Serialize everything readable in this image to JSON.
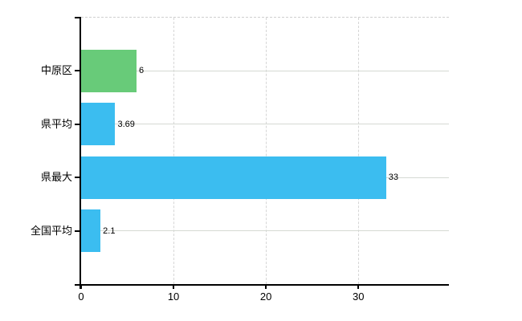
{
  "chart_data": {
    "type": "bar",
    "orientation": "horizontal",
    "title": "",
    "xlabel": "",
    "ylabel": "",
    "categories": [
      "中原区",
      "県平均",
      "県最大",
      "全国平均"
    ],
    "values": [
      6,
      3.69,
      33,
      2.1
    ],
    "value_labels": [
      "6",
      "3.69",
      "33",
      "2.1"
    ],
    "bar_colors": [
      "#68cb79",
      "#3bbdf0",
      "#3bbdf0",
      "#3bbdf0"
    ],
    "x_ticks": [
      0,
      10,
      20,
      30
    ],
    "x_tick_labels": [
      "0",
      "10",
      "20",
      "30"
    ],
    "xlim": [
      0,
      39.8
    ],
    "grid": "on",
    "gridline_style": {
      "horizontal": "solid",
      "vertical": "dashed",
      "top_border": "dashed"
    },
    "legend": "none"
  },
  "colors": {
    "bar_green": "#68cb79",
    "bar_blue": "#3bbdf0",
    "grid_solid": "#d5d9d3",
    "grid_dashed": "#d6d6d6",
    "axis": "#000000",
    "background": "#ffffff",
    "text": "#000000"
  }
}
